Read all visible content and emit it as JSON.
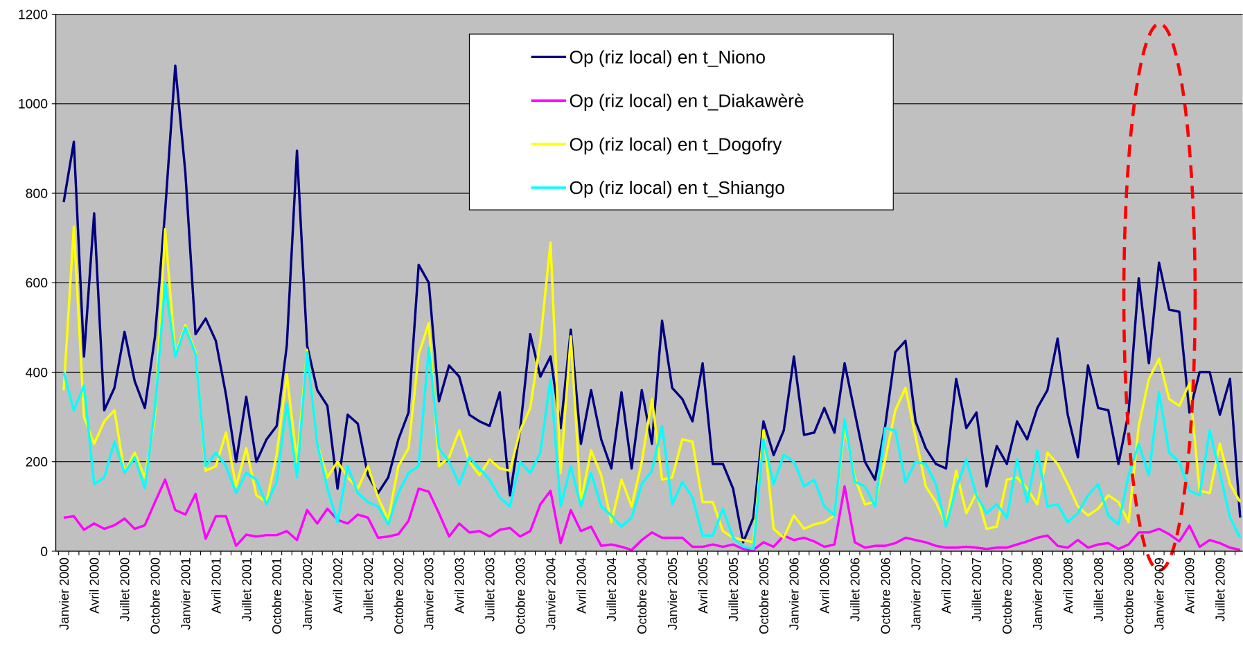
{
  "chart_data": {
    "type": "line",
    "categories": [
      "Janvier 2000",
      null,
      null,
      "Avril 2000",
      null,
      null,
      "Juillet 2000",
      null,
      null,
      "Octobre 2000",
      null,
      null,
      "Janvier 2001",
      null,
      null,
      "Avril 2001",
      null,
      null,
      "Juillet 2001",
      null,
      null,
      "Octobre 2001",
      null,
      null,
      "Janvier 2002",
      null,
      null,
      "Avril 2002",
      null,
      null,
      "Juillet 2002",
      null,
      null,
      "Octobre 2002",
      null,
      null,
      "Janvier 2003",
      null,
      null,
      "Avril 2003",
      null,
      null,
      "Juillet 2003",
      null,
      null,
      "Octobre 2003",
      null,
      null,
      "Janvier 2004",
      null,
      null,
      "Avril 2004",
      null,
      null,
      "Juillet 2004",
      null,
      null,
      "Octobre 2004",
      null,
      null,
      "Janvier 2005",
      null,
      null,
      "Avril 2005",
      null,
      null,
      "Juillet 2005",
      null,
      null,
      "Octobre 2005",
      null,
      null,
      "Janvier 2006",
      null,
      null,
      "Avril 2006",
      null,
      null,
      "Juillet 2006",
      null,
      null,
      "Octobre 2006",
      null,
      null,
      "Janvier 2007",
      null,
      null,
      "Avril 2007",
      null,
      null,
      "Juillet 2007",
      null,
      null,
      "Octobre 2007",
      null,
      null,
      "Janvier 2008",
      null,
      null,
      "Avril 2008",
      null,
      null,
      "Juillet 2008",
      null,
      null,
      "Octobre 2008",
      null,
      null,
      "Janvier 2009",
      null,
      null,
      "Avril 2009",
      null,
      null,
      "Juillet 2009",
      null,
      null
    ],
    "series": [
      {
        "name": "Op (riz local) en t_Niono",
        "color": "#000080",
        "values": [
          780,
          915,
          435,
          755,
          315,
          365,
          490,
          380,
          320,
          480,
          760,
          1085,
          845,
          485,
          520,
          470,
          350,
          200,
          345,
          200,
          250,
          280,
          460,
          895,
          460,
          360,
          325,
          140,
          305,
          285,
          170,
          130,
          165,
          250,
          310,
          640,
          600,
          335,
          415,
          390,
          305,
          290,
          280,
          355,
          125,
          270,
          485,
          390,
          435,
          275,
          495,
          240,
          360,
          250,
          185,
          355,
          185,
          360,
          240,
          515,
          365,
          340,
          290,
          420,
          195,
          195,
          140,
          20,
          75,
          290,
          215,
          270,
          435,
          260,
          265,
          320,
          265,
          420,
          310,
          200,
          160,
          280,
          445,
          470,
          290,
          230,
          195,
          185,
          385,
          275,
          310,
          145,
          235,
          195,
          290,
          250,
          320,
          360,
          475,
          305,
          210,
          415,
          320,
          315,
          195,
          310,
          610,
          420,
          645,
          540,
          535,
          310,
          400,
          400,
          305,
          385,
          75
        ]
      },
      {
        "name": "Op (riz local) en t_Diakawèrè",
        "color": "#ff00ff",
        "values": [
          75,
          78,
          48,
          62,
          50,
          58,
          73,
          50,
          58,
          110,
          160,
          92,
          82,
          128,
          28,
          78,
          78,
          12,
          37,
          33,
          36,
          36,
          45,
          25,
          92,
          62,
          95,
          70,
          62,
          82,
          75,
          30,
          33,
          38,
          68,
          140,
          133,
          85,
          33,
          62,
          42,
          45,
          33,
          48,
          52,
          33,
          45,
          105,
          135,
          18,
          92,
          45,
          55,
          12,
          15,
          10,
          3,
          25,
          42,
          30,
          30,
          30,
          10,
          10,
          15,
          10,
          15,
          5,
          3,
          20,
          10,
          35,
          25,
          30,
          22,
          10,
          15,
          145,
          20,
          8,
          12,
          12,
          18,
          30,
          25,
          20,
          12,
          8,
          8,
          10,
          8,
          5,
          8,
          8,
          15,
          22,
          30,
          35,
          12,
          8,
          25,
          8,
          15,
          18,
          5,
          15,
          42,
          42,
          50,
          38,
          22,
          57,
          10,
          25,
          18,
          8,
          3
        ]
      },
      {
        "name": "Op (riz local) en t_Dogofry",
        "color": "#ffff00",
        "values": [
          360,
          725,
          300,
          240,
          290,
          315,
          175,
          220,
          165,
          300,
          720,
          440,
          505,
          445,
          180,
          190,
          265,
          145,
          230,
          125,
          110,
          215,
          395,
          200,
          450,
          240,
          165,
          200,
          165,
          140,
          190,
          120,
          70,
          190,
          230,
          440,
          510,
          190,
          210,
          270,
          200,
          170,
          205,
          185,
          180,
          270,
          320,
          470,
          690,
          175,
          480,
          110,
          225,
          170,
          65,
          160,
          100,
          200,
          340,
          160,
          165,
          250,
          245,
          110,
          110,
          45,
          30,
          25,
          20,
          270,
          50,
          30,
          80,
          50,
          60,
          65,
          80,
          280,
          165,
          105,
          110,
          205,
          315,
          365,
          255,
          145,
          110,
          60,
          180,
          85,
          130,
          50,
          55,
          160,
          165,
          140,
          105,
          220,
          195,
          150,
          100,
          80,
          95,
          125,
          110,
          65,
          280,
          385,
          430,
          340,
          325,
          375,
          135,
          130,
          240,
          150,
          110
        ]
      },
      {
        "name": "Op (riz local) en t_Shiango",
        "color": "#00ffff",
        "values": [
          400,
          315,
          370,
          150,
          165,
          245,
          175,
          210,
          140,
          320,
          600,
          435,
          500,
          440,
          190,
          220,
          190,
          130,
          175,
          160,
          105,
          155,
          330,
          165,
          445,
          240,
          140,
          65,
          190,
          130,
          110,
          100,
          60,
          130,
          175,
          190,
          455,
          230,
          200,
          150,
          210,
          185,
          160,
          120,
          100,
          200,
          175,
          220,
          385,
          100,
          190,
          100,
          175,
          100,
          80,
          55,
          75,
          150,
          180,
          280,
          105,
          155,
          120,
          35,
          35,
          95,
          30,
          10,
          5,
          250,
          150,
          215,
          200,
          145,
          160,
          100,
          80,
          295,
          155,
          145,
          100,
          275,
          270,
          155,
          200,
          195,
          150,
          55,
          140,
          205,
          125,
          85,
          105,
          75,
          205,
          110,
          225,
          100,
          105,
          65,
          85,
          125,
          150,
          80,
          60,
          170,
          240,
          170,
          355,
          220,
          200,
          135,
          125,
          270,
          175,
          75,
          30
        ]
      }
    ],
    "ylim": [
      0,
      1200
    ],
    "yticks": [
      0,
      200,
      400,
      600,
      800,
      1000,
      1200
    ],
    "grid": true,
    "legend": "top"
  }
}
